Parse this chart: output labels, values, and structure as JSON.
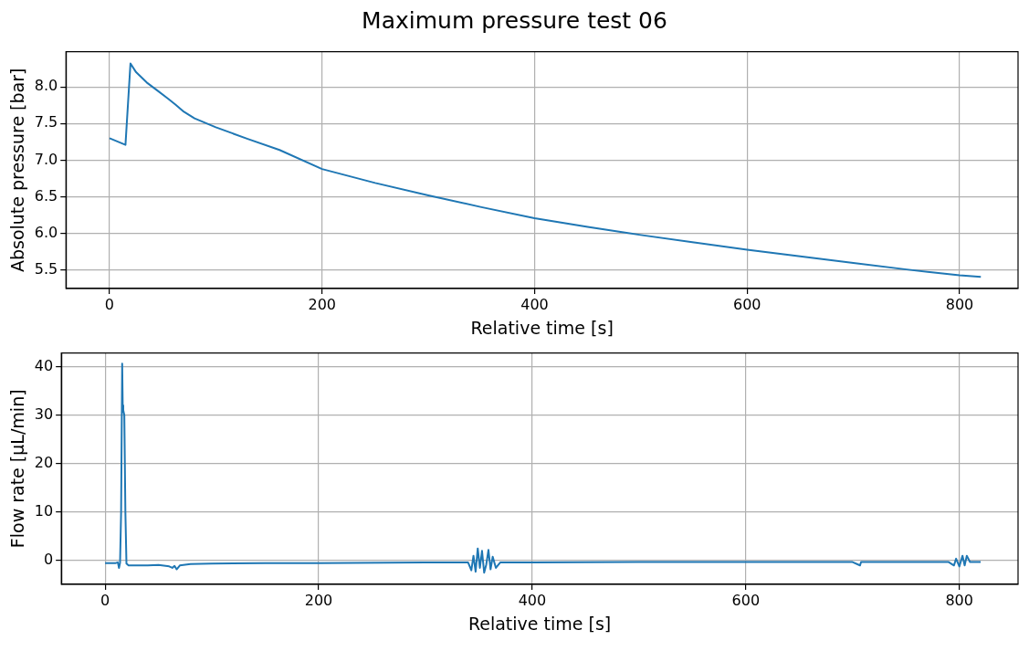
{
  "chart_data": [
    {
      "type": "line",
      "title": "Maximum pressure test 06",
      "xlabel": "Relative time [s]",
      "ylabel": "Absolute pressure [bar]",
      "xlim": [
        -41,
        855
      ],
      "ylim": [
        5.25,
        8.48
      ],
      "xticks": [
        0,
        200,
        400,
        600,
        800
      ],
      "yticks": [
        5.5,
        {
          "value": 6,
          "label": "6.0"
        },
        6.5,
        {
          "value": 7,
          "label": "7.0"
        },
        7.5,
        {
          "value": 8,
          "label": "8.0"
        }
      ],
      "grid": true,
      "series": [
        {
          "color": "#1f77b4",
          "x": [
            0,
            15,
            19.7,
            25,
            35,
            45,
            55,
            62,
            70,
            80,
            100,
            130,
            160,
            200,
            250,
            300,
            350,
            400,
            450,
            500,
            550,
            600,
            650,
            700,
            750,
            800,
            820
          ],
          "values": [
            7.3,
            7.21,
            8.32,
            8.2,
            8.06,
            7.95,
            7.84,
            7.76,
            7.66,
            7.57,
            7.45,
            7.29,
            7.14,
            6.88,
            6.69,
            6.52,
            6.36,
            6.21,
            6.09,
            5.98,
            5.88,
            5.78,
            5.69,
            5.6,
            5.51,
            5.43,
            5.41
          ]
        }
      ]
    },
    {
      "type": "line",
      "xlabel": "Relative time [s]",
      "ylabel": "Flow rate [µL/min]",
      "xlim": [
        -41,
        855
      ],
      "ylim": [
        -4.9,
        42.8
      ],
      "xticks": [
        0,
        200,
        400,
        600,
        800
      ],
      "yticks": [
        0,
        10,
        20,
        30,
        40
      ],
      "grid": true,
      "series": [
        {
          "color": "#1f77b4",
          "x": [
            0,
            10,
            12,
            13,
            14,
            15,
            16,
            16.5,
            17,
            18,
            19,
            20,
            22,
            30,
            40,
            50,
            60,
            63,
            65,
            67,
            70,
            80,
            100,
            150,
            200,
            300,
            340,
            343,
            345,
            347,
            349,
            351,
            353,
            355,
            357,
            359,
            361,
            363,
            366,
            370,
            400,
            500,
            600,
            700,
            707,
            708,
            710,
            790,
            795,
            797,
            800,
            803,
            805,
            807,
            810,
            820
          ],
          "values": [
            -0.5,
            -0.5,
            -0.4,
            -1.5,
            -0.5,
            10,
            40.6,
            32,
            31,
            30,
            10,
            -0.6,
            -1,
            -1,
            -1,
            -0.9,
            -1.2,
            -1.5,
            -1.1,
            -1.8,
            -1,
            -0.7,
            -0.6,
            -0.5,
            -0.5,
            -0.4,
            -0.4,
            -2,
            1,
            -2.3,
            2.5,
            -1.5,
            2,
            -2.5,
            -0.8,
            2.2,
            -1.8,
            0.8,
            -1.5,
            -0.4,
            -0.4,
            -0.3,
            -0.3,
            -0.3,
            -1,
            -0.3,
            -0.3,
            -0.3,
            -1,
            0.4,
            -1.2,
            1,
            -1,
            1,
            -0.3,
            -0.3
          ]
        }
      ]
    }
  ]
}
